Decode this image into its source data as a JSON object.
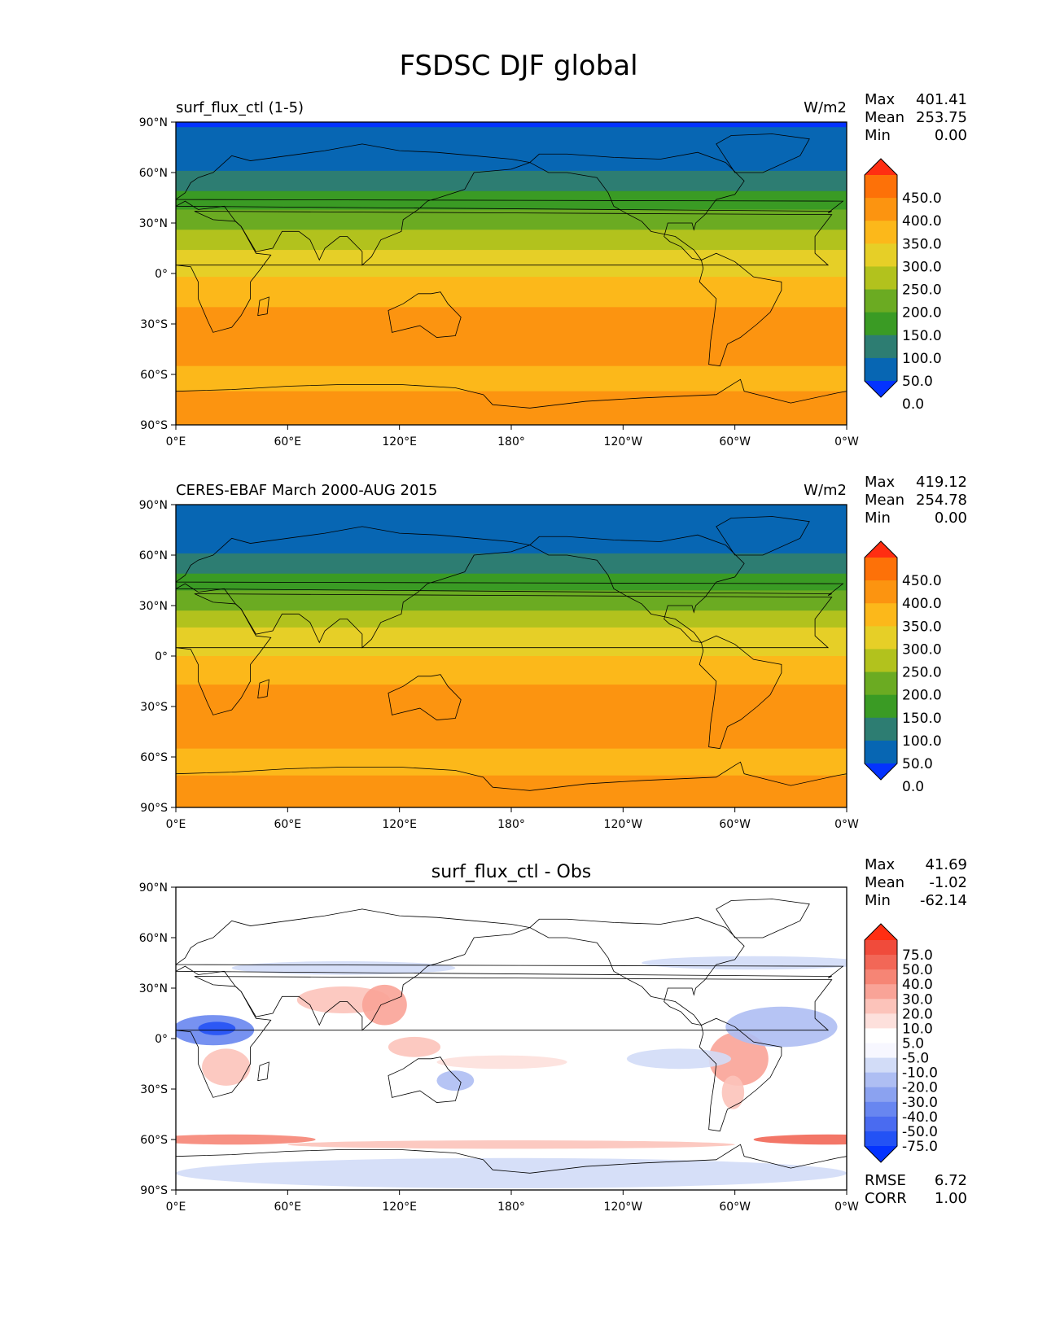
{
  "figure": {
    "title": "FSDSC DJF global"
  },
  "axes": {
    "lat_labels": [
      "90°N",
      "60°N",
      "30°N",
      "0°",
      "30°S",
      "60°S",
      "90°S"
    ],
    "lon_labels": [
      "0°E",
      "60°E",
      "120°E",
      "180°",
      "120°W",
      "60°W",
      "0°W"
    ]
  },
  "panels": [
    {
      "name": "model",
      "left_title": "surf_flux_ctl (1-5)",
      "center_title": "",
      "units": "W/m2",
      "stats": {
        "max_label": "Max",
        "max": "401.41",
        "mean_label": "Mean",
        "mean": "253.75",
        "min_label": "Min",
        "min": "0.00"
      },
      "colorbar": {
        "colors": [
          "#0433ff",
          "#0766b3",
          "#2d7d72",
          "#3a9b24",
          "#6bab22",
          "#b2c21d",
          "#e6cf27",
          "#fcb81a",
          "#fc9410",
          "#fd7108",
          "#ff2e12"
        ],
        "labels": [
          "450.0",
          "400.0",
          "350.0",
          "300.0",
          "250.0",
          "200.0",
          "150.0",
          "100.0",
          "50.0",
          "0.0"
        ]
      },
      "zonal_bands": [
        {
          "lat_from": 90,
          "lat_to": 87,
          "value": "below-0"
        },
        {
          "lat_from": 87,
          "lat_to": 61,
          "value": "0-50"
        },
        {
          "lat_from": 61,
          "lat_to": 49,
          "value": "50-100"
        },
        {
          "lat_from": 49,
          "lat_to": 38,
          "value": "100-150"
        },
        {
          "lat_from": 38,
          "lat_to": 26,
          "value": "150-200"
        },
        {
          "lat_from": 26,
          "lat_to": 14,
          "value": "200-250"
        },
        {
          "lat_from": 14,
          "lat_to": -2,
          "value": "250-300"
        },
        {
          "lat_from": -2,
          "lat_to": -20,
          "value": "300-350"
        },
        {
          "lat_from": -20,
          "lat_to": -55,
          "value": "350-400"
        },
        {
          "lat_from": -55,
          "lat_to": -70,
          "value": "300-350"
        },
        {
          "lat_from": -70,
          "lat_to": -90,
          "value": "350-400"
        }
      ]
    },
    {
      "name": "obs",
      "left_title": "CERES-EBAF March 2000-AUG 2015",
      "center_title": "",
      "units": "W/m2",
      "stats": {
        "max_label": "Max",
        "max": "419.12",
        "mean_label": "Mean",
        "mean": "254.78",
        "min_label": "Min",
        "min": "0.00"
      },
      "colorbar": {
        "colors": [
          "#0433ff",
          "#0766b3",
          "#2d7d72",
          "#3a9b24",
          "#6bab22",
          "#b2c21d",
          "#e6cf27",
          "#fcb81a",
          "#fc9410",
          "#fd7108",
          "#ff2e12"
        ],
        "labels": [
          "450.0",
          "400.0",
          "350.0",
          "300.0",
          "250.0",
          "200.0",
          "150.0",
          "100.0",
          "50.0",
          "0.0"
        ]
      },
      "zonal_bands": [
        {
          "lat_from": 90,
          "lat_to": 61,
          "value": "0-50"
        },
        {
          "lat_from": 61,
          "lat_to": 49,
          "value": "50-100"
        },
        {
          "lat_from": 49,
          "lat_to": 39,
          "value": "100-150"
        },
        {
          "lat_from": 39,
          "lat_to": 27,
          "value": "150-200"
        },
        {
          "lat_from": 27,
          "lat_to": 17,
          "value": "200-250"
        },
        {
          "lat_from": 17,
          "lat_to": 0,
          "value": "250-300"
        },
        {
          "lat_from": 0,
          "lat_to": -17,
          "value": "300-350"
        },
        {
          "lat_from": -17,
          "lat_to": -55,
          "value": "350-400"
        },
        {
          "lat_from": -55,
          "lat_to": -71,
          "value": "300-350"
        },
        {
          "lat_from": -71,
          "lat_to": -90,
          "value": "350-400"
        }
      ]
    },
    {
      "name": "diff",
      "left_title": "",
      "center_title": "surf_flux_ctl - Obs",
      "units": "",
      "stats": {
        "max_label": "Max",
        "max": "41.69",
        "mean_label": "Mean",
        "mean": "-1.02",
        "min_label": "Min",
        "min": "-62.14"
      },
      "colorbar": {
        "colors": [
          "#0433ff",
          "#2352f5",
          "#4a6bf0",
          "#6886f0",
          "#8ba2f0",
          "#aebef3",
          "#d2dcf7",
          "#f7f7ff",
          "#ffffff",
          "#fde0dc",
          "#fcc3ba",
          "#f9a397",
          "#f68575",
          "#f26757",
          "#f04b3b",
          "#ff2e12"
        ],
        "labels": [
          "75.0",
          "50.0",
          "40.0",
          "30.0",
          "20.0",
          "10.0",
          "5.0",
          "-5.0",
          "-10.0",
          "-20.0",
          "-30.0",
          "-40.0",
          "-50.0",
          "-75.0"
        ]
      },
      "extra_stats": {
        "rmse_label": "RMSE",
        "rmse": "6.72",
        "corr_label": "CORR",
        "corr": "1.00"
      }
    }
  ]
}
